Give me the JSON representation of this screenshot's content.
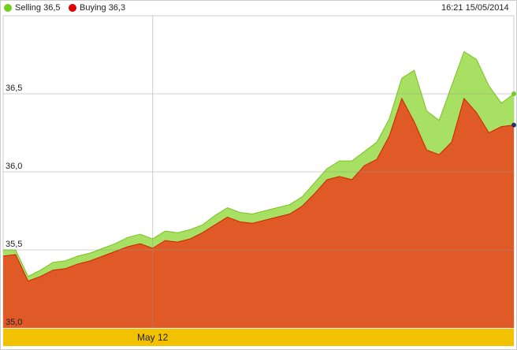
{
  "chart_data": {
    "type": "area",
    "timestamp": "16:21 15/05/2014",
    "categories": [
      null,
      null,
      null,
      null,
      null,
      null,
      null,
      null,
      null,
      null,
      null,
      null,
      "May 12",
      null,
      null,
      null,
      null,
      null,
      null,
      null,
      null,
      null,
      null,
      null,
      null,
      null,
      null,
      null,
      null,
      null,
      null,
      null,
      null,
      null,
      null,
      null,
      null,
      null,
      null,
      null,
      null,
      null
    ],
    "series": [
      {
        "name": "Selling 36,5",
        "color": "#a8e063",
        "line_color": "#78c21e",
        "dot_color": "#6fcf1f",
        "values": [
          35.5,
          35.5,
          35.33,
          35.37,
          35.42,
          35.43,
          35.46,
          35.48,
          35.51,
          35.54,
          35.58,
          35.6,
          35.57,
          35.62,
          35.61,
          35.63,
          35.66,
          35.72,
          35.77,
          35.74,
          35.73,
          35.75,
          35.77,
          35.79,
          35.84,
          35.93,
          36.02,
          36.07,
          36.07,
          36.13,
          36.19,
          36.34,
          36.6,
          36.65,
          36.39,
          36.33,
          36.55,
          36.77,
          36.72,
          36.55,
          36.44,
          36.5
        ]
      },
      {
        "name": "Buying 36,3",
        "color": "#e05a28",
        "line_color": "#d02000",
        "dot_color": "#e00000",
        "values": [
          35.46,
          35.47,
          35.3,
          35.33,
          35.37,
          35.38,
          35.41,
          35.43,
          35.46,
          35.49,
          35.52,
          35.54,
          35.51,
          35.56,
          35.55,
          35.57,
          35.61,
          35.66,
          35.71,
          35.68,
          35.67,
          35.69,
          35.71,
          35.73,
          35.78,
          35.86,
          35.95,
          35.97,
          35.95,
          36.04,
          36.08,
          36.23,
          36.47,
          36.32,
          36.14,
          36.11,
          36.19,
          36.47,
          36.38,
          36.25,
          36.29,
          36.3
        ]
      }
    ],
    "ylim": [
      35,
      37
    ],
    "yticks": [
      {
        "value": 35,
        "label": "35,0"
      },
      {
        "value": 35.5,
        "label": "35,5"
      },
      {
        "value": 36,
        "label": "36,0"
      },
      {
        "value": 36.5,
        "label": "36,5"
      }
    ],
    "grid": true,
    "axis_band_color": "#f2c200"
  }
}
